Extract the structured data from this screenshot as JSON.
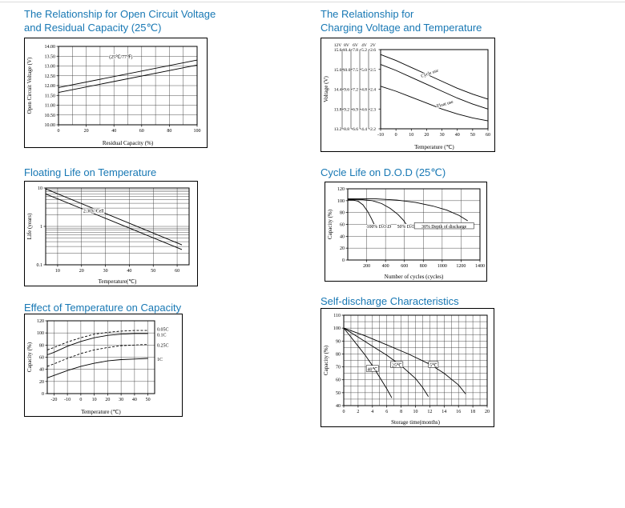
{
  "page": {
    "top_rule_color": "#dcdcdc"
  },
  "colors": {
    "heading": "#1878b4",
    "grid": "#3c3c3c",
    "line": "#000000"
  },
  "headings": [
    {
      "lines": [
        "The Relationship for Open Circuit Voltage",
        "and Residual Capacity (25℃)"
      ]
    },
    {
      "lines": [
        "The Relationship for",
        "Charging Voltage and Temperature"
      ]
    },
    {
      "lines": [
        "Floating Life on Temperature"
      ]
    },
    {
      "lines": [
        "Cycle Life on D.O.D (25℃)"
      ]
    },
    {
      "lines": [
        "Effect of Temperature on Capacity"
      ]
    },
    {
      "lines": [
        "Self-discharge Characteristics"
      ]
    }
  ],
  "chart_data": [
    {
      "name": "open-circuit-voltage-vs-residual-capacity",
      "type": "line",
      "title": "The Relationship for Open Circuit Voltage and Residual Capacity (25℃)",
      "xlabel": "Residual Capacity (%)",
      "ylabel": "Open Circuit Voltage (V)",
      "xlim": [
        0,
        100
      ],
      "ylim": [
        10,
        14
      ],
      "x_ticks": [
        0,
        20,
        40,
        60,
        80,
        100
      ],
      "x_minor_step": 10,
      "y_ticks": [
        10,
        10.5,
        11,
        11.5,
        12,
        12.5,
        13,
        13.5,
        14
      ],
      "y_tick_labels": [
        "10.00",
        "10.50",
        "11.00",
        "11.50",
        "12.00",
        "12.50",
        "13.00",
        "13.50",
        "14.00"
      ],
      "grid": true,
      "margins": {
        "l": 42,
        "r": 12,
        "t": 10,
        "b": 28
      },
      "series": [
        {
          "name": "upper",
          "points": [
            [
              0,
              11.9
            ],
            [
              100,
              13.3
            ]
          ]
        },
        {
          "name": "lower",
          "points": [
            [
              0,
              11.65
            ],
            [
              100,
              13.05
            ]
          ]
        }
      ],
      "annotations": [
        {
          "text": "(25℃/77℉)",
          "x": 45,
          "y": 13.45
        }
      ]
    },
    {
      "name": "charging-voltage-vs-temperature",
      "type": "line",
      "title": "The Relationship for Charging Voltage and Temperature",
      "xlabel": "Temperature (℃)",
      "ylabel": "Voltage (V)",
      "xlim": [
        -10,
        60
      ],
      "ylim": [
        2.2,
        2.6
      ],
      "x_ticks": [
        -10,
        0,
        10,
        20,
        30,
        40,
        50,
        60
      ],
      "y_ticks": [
        2.2,
        2.3,
        2.4,
        2.5,
        2.6
      ],
      "y_multi": {
        "header": [
          "12V",
          "8V",
          "6V",
          "4V",
          "2V"
        ],
        "rows": [
          [
            "13.2",
            "8.8",
            "6.6",
            "4.4",
            "2.2"
          ],
          [
            "13.8",
            "9.2",
            "6.9",
            "4.6",
            "2.3"
          ],
          [
            "14.4",
            "9.6",
            "7.2",
            "4.8",
            "2.4"
          ],
          [
            "15.0",
            "10.0",
            "7.5",
            "5.0",
            "2.5"
          ],
          [
            "15.6",
            "10.4",
            "7.8",
            "5.2",
            "2.6"
          ]
        ]
      },
      "grid": false,
      "margins": {
        "l": 74,
        "r": 8,
        "t": 14,
        "b": 28
      },
      "series": [
        {
          "name": "cycle-use-upper",
          "points": [
            [
              -10,
              2.575
            ],
            [
              0,
              2.545
            ],
            [
              10,
              2.51
            ],
            [
              20,
              2.475
            ],
            [
              30,
              2.44
            ],
            [
              40,
              2.405
            ],
            [
              50,
              2.375
            ],
            [
              60,
              2.35
            ]
          ]
        },
        {
          "name": "cycle-use-lower",
          "points": [
            [
              -10,
              2.525
            ],
            [
              0,
              2.495
            ],
            [
              10,
              2.46
            ],
            [
              20,
              2.425
            ],
            [
              30,
              2.39
            ],
            [
              40,
              2.355
            ],
            [
              50,
              2.325
            ],
            [
              60,
              2.3
            ]
          ]
        },
        {
          "name": "float-use",
          "points": [
            [
              -10,
              2.415
            ],
            [
              0,
              2.39
            ],
            [
              10,
              2.36
            ],
            [
              20,
              2.33
            ],
            [
              30,
              2.3
            ],
            [
              40,
              2.275
            ],
            [
              50,
              2.255
            ],
            [
              60,
              2.24
            ]
          ]
        }
      ],
      "annotations": [
        {
          "text": "Cycle use",
          "x": 22,
          "y": 2.48,
          "rotate": -20
        },
        {
          "text": "Float use",
          "x": 32,
          "y": 2.325,
          "rotate": -16
        }
      ]
    },
    {
      "name": "floating-life-on-temperature",
      "type": "line",
      "title": "Floating Life on Temperature",
      "xlabel": "Temperature(℃)",
      "ylabel": "Life (years)",
      "xlim": [
        5,
        65
      ],
      "ylim": [
        0.1,
        10
      ],
      "y_scale": "log",
      "x_ticks": [
        10,
        20,
        30,
        40,
        50,
        60
      ],
      "y_ticks": [
        0.1,
        1,
        10
      ],
      "grid": true,
      "margins": {
        "l": 26,
        "r": 10,
        "t": 8,
        "b": 26
      },
      "series": [
        {
          "name": "upper",
          "points": [
            [
              5,
              9.5
            ],
            [
              62,
              0.33
            ]
          ]
        },
        {
          "name": "lower",
          "points": [
            [
              5,
              7
            ],
            [
              62,
              0.25
            ]
          ]
        }
      ],
      "annotations": [
        {
          "text": "2.30V/Cell",
          "x": 25,
          "y": 2.5
        }
      ]
    },
    {
      "name": "cycle-life-on-dod",
      "type": "line",
      "title": "Cycle Life on D.O.D (25℃)",
      "xlabel": "Number of cycles (cycles)",
      "ylabel": "Capacity (%)",
      "xlim": [
        0,
        1400
      ],
      "ylim": [
        0,
        120
      ],
      "x_ticks": [
        200,
        400,
        600,
        800,
        1000,
        1200,
        1400
      ],
      "y_ticks": [
        0,
        20,
        40,
        60,
        80,
        100,
        120
      ],
      "grid": true,
      "margins": {
        "l": 28,
        "r": 8,
        "t": 8,
        "b": 26
      },
      "series": [
        {
          "name": "100% D.O.D",
          "points": [
            [
              0,
              101
            ],
            [
              60,
              101
            ],
            [
              110,
              99
            ],
            [
              160,
              93
            ],
            [
              210,
              82
            ],
            [
              250,
              70
            ],
            [
              280,
              60
            ],
            [
              300,
              54
            ]
          ]
        },
        {
          "name": "50% D.O.D",
          "points": [
            [
              0,
              102
            ],
            [
              150,
              102
            ],
            [
              260,
              100
            ],
            [
              360,
              95
            ],
            [
              450,
              87
            ],
            [
              530,
              77
            ],
            [
              590,
              67
            ],
            [
              620,
              60
            ]
          ]
        },
        {
          "name": "30% D.O.D",
          "points": [
            [
              0,
              103
            ],
            [
              300,
              103
            ],
            [
              520,
              101
            ],
            [
              720,
              97
            ],
            [
              900,
              91
            ],
            [
              1050,
              84
            ],
            [
              1180,
              75
            ],
            [
              1270,
              66
            ]
          ]
        }
      ],
      "annotations": [
        {
          "text": "100% D.O.D",
          "x": 330,
          "y": 56
        },
        {
          "text": "50% D.O.D",
          "x": 640,
          "y": 56
        },
        {
          "text": "30% Depth of discharge",
          "x": 1020,
          "y": 56,
          "boxed": true
        }
      ]
    },
    {
      "name": "effect-of-temperature-on-capacity",
      "type": "line",
      "title": "Effect of Temperature on Capacity",
      "xlabel": "Temperature (℃)",
      "ylabel": "Capacity (%)",
      "xlim": [
        -25,
        55
      ],
      "ylim": [
        0,
        120
      ],
      "x_ticks": [
        -20,
        -10,
        0,
        10,
        20,
        30,
        40,
        50
      ],
      "y_ticks": [
        0,
        20,
        40,
        60,
        80,
        100,
        120
      ],
      "grid": true,
      "margins": {
        "l": 28,
        "r": 34,
        "t": 8,
        "b": 28
      },
      "series": [
        {
          "name": "0.05C",
          "dash": "3,2",
          "points": [
            [
              -25,
              72
            ],
            [
              -20,
              76
            ],
            [
              -10,
              85
            ],
            [
              0,
              92
            ],
            [
              10,
              98
            ],
            [
              20,
              101
            ],
            [
              30,
              103
            ],
            [
              40,
              104
            ],
            [
              50,
              104
            ]
          ]
        },
        {
          "name": "0.1C",
          "points": [
            [
              -25,
              64
            ],
            [
              -20,
              68
            ],
            [
              -10,
              78
            ],
            [
              0,
              86
            ],
            [
              10,
              92
            ],
            [
              20,
              96
            ],
            [
              30,
              98
            ],
            [
              40,
              99
            ],
            [
              50,
              99
            ]
          ]
        },
        {
          "name": "0.25C",
          "dash": "3,2",
          "points": [
            [
              -25,
              45
            ],
            [
              -20,
              49
            ],
            [
              -10,
              58
            ],
            [
              0,
              66
            ],
            [
              10,
              72
            ],
            [
              20,
              76
            ],
            [
              30,
              79
            ],
            [
              40,
              80
            ],
            [
              50,
              81
            ]
          ]
        },
        {
          "name": "1C",
          "points": [
            [
              -25,
              26
            ],
            [
              -20,
              30
            ],
            [
              -10,
              38
            ],
            [
              0,
              45
            ],
            [
              10,
              50
            ],
            [
              20,
              54
            ],
            [
              30,
              56
            ],
            [
              40,
              57
            ],
            [
              50,
              58
            ]
          ]
        }
      ],
      "right_labels": [
        {
          "text": "0.05C",
          "y": 106
        },
        {
          "text": "0.1C",
          "y": 97
        },
        {
          "text": "0.25C",
          "y": 80
        },
        {
          "text": "1C",
          "y": 57
        }
      ]
    },
    {
      "name": "self-discharge-characteristics",
      "type": "line",
      "title": "Self-discharge Characteristics",
      "xlabel": "Storage time(months)",
      "ylabel": "Capacity (%)",
      "xlim": [
        0,
        20
      ],
      "ylim": [
        40,
        110
      ],
      "x_ticks": [
        0,
        2,
        4,
        6,
        8,
        10,
        12,
        14,
        16,
        18,
        20
      ],
      "x_minor_step": 1,
      "y_ticks": [
        40,
        50,
        60,
        70,
        80,
        90,
        100,
        110
      ],
      "y_minor_step": 5,
      "grid": true,
      "margins": {
        "l": 28,
        "r": 8,
        "t": 8,
        "b": 26
      },
      "series": [
        {
          "name": "40℃",
          "points": [
            [
              0,
              100
            ],
            [
              1,
              93
            ],
            [
              2,
              86
            ],
            [
              3,
              79
            ],
            [
              4,
              71
            ],
            [
              5,
              62
            ],
            [
              6,
              53
            ],
            [
              6.7,
              46
            ]
          ]
        },
        {
          "name": "25℃",
          "points": [
            [
              0,
              100
            ],
            [
              2,
              93
            ],
            [
              4,
              86
            ],
            [
              6,
              79
            ],
            [
              8,
              71
            ],
            [
              10,
              61
            ],
            [
              11,
              54
            ],
            [
              11.8,
              47
            ]
          ]
        },
        {
          "name": "5℃",
          "points": [
            [
              0,
              100
            ],
            [
              3,
              94
            ],
            [
              6,
              87
            ],
            [
              9,
              80
            ],
            [
              12,
              72
            ],
            [
              14,
              65
            ],
            [
              16,
              56
            ],
            [
              17,
              49
            ]
          ]
        }
      ],
      "annotations": [
        {
          "text": "40℃",
          "x": 4,
          "y": 68,
          "boxed": true
        },
        {
          "text": "25℃",
          "x": 7.4,
          "y": 71,
          "boxed": true
        },
        {
          "text": "5℃",
          "x": 12.5,
          "y": 71,
          "boxed": true
        }
      ]
    }
  ]
}
